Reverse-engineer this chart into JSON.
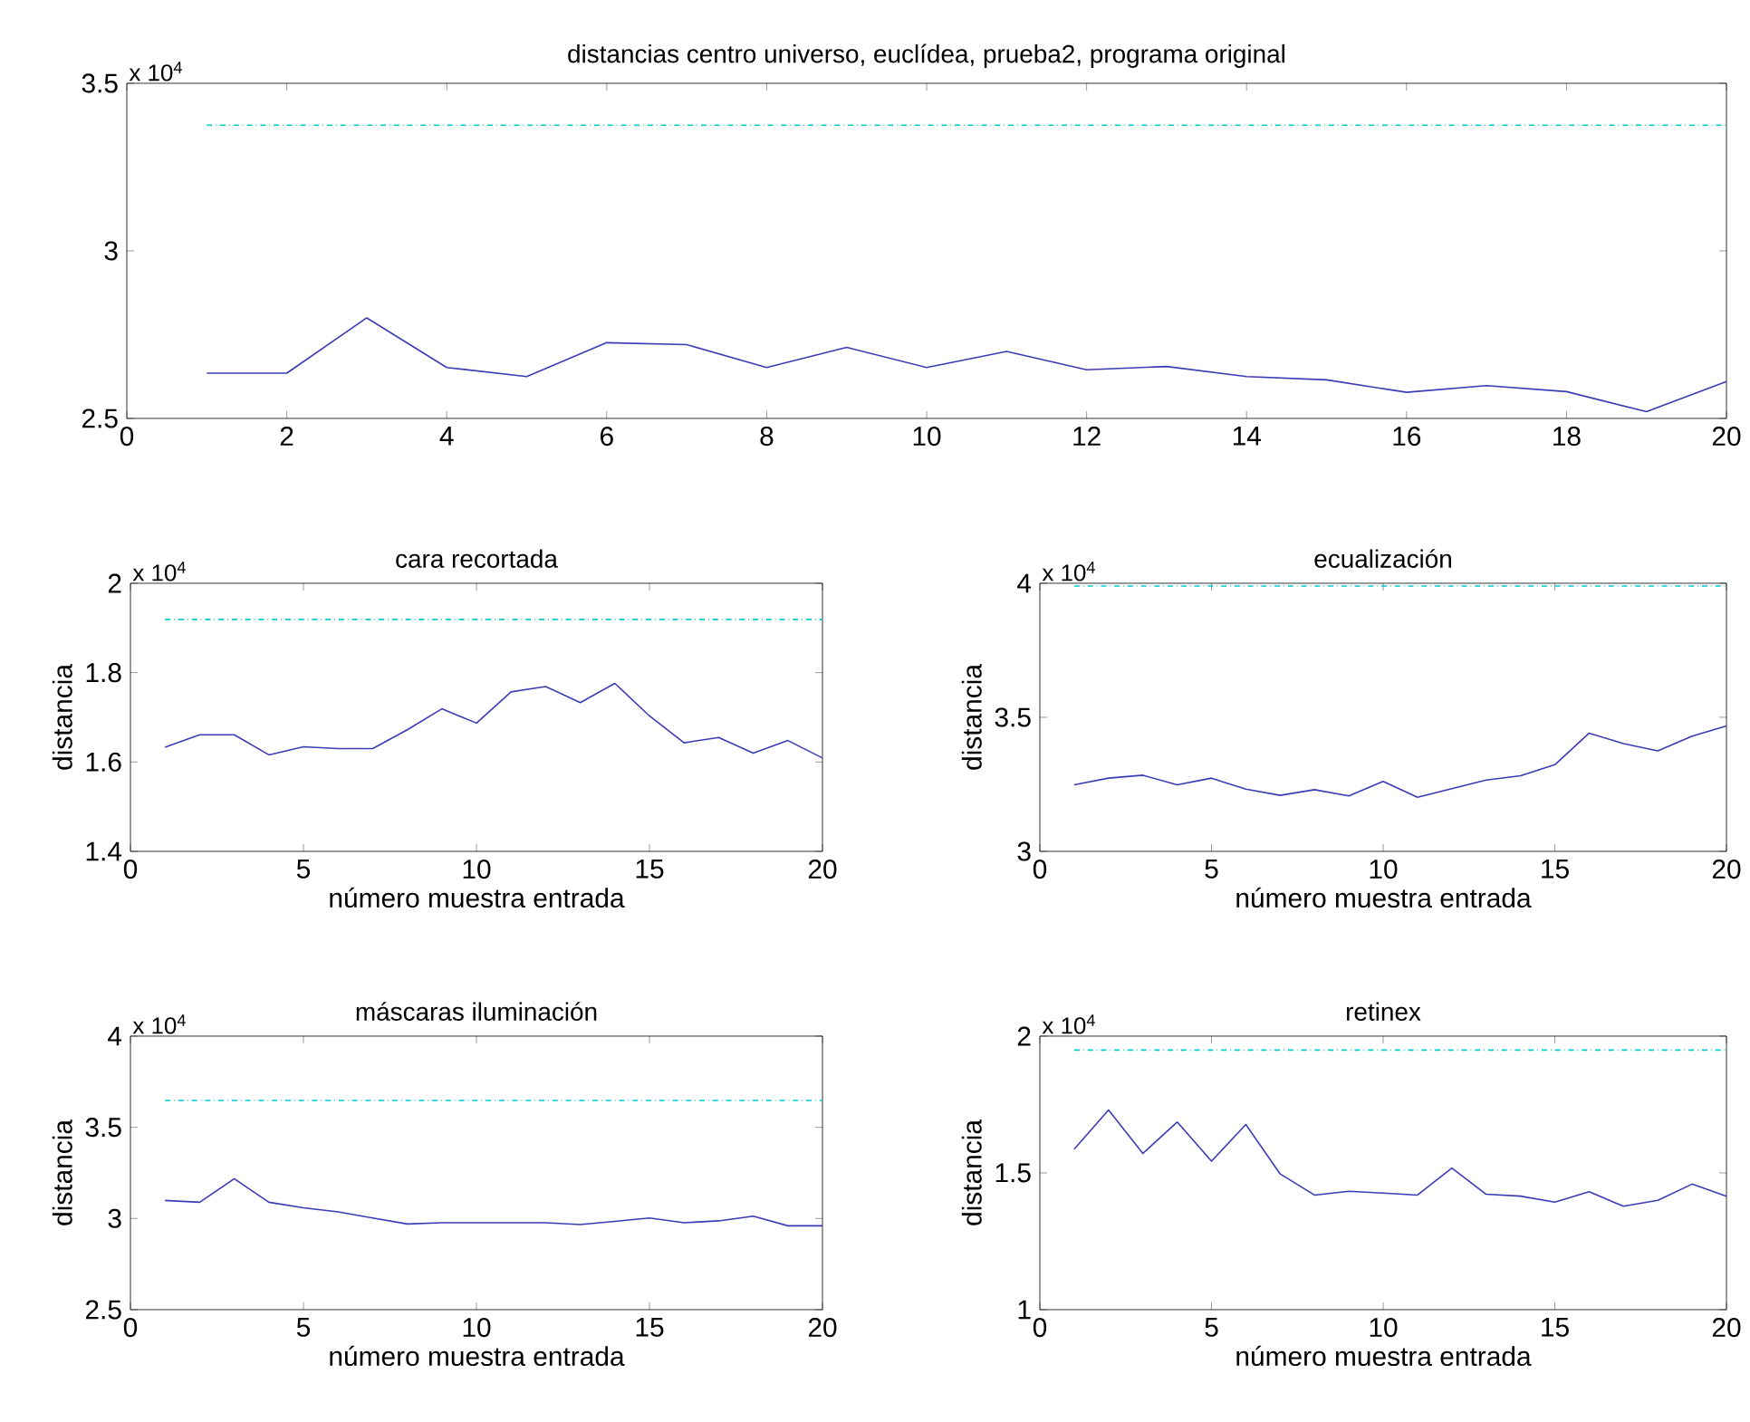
{
  "chart_data": [
    {
      "type": "line",
      "title": "distancias centro universo, euclídea, prueba2, programa original",
      "x": [
        1,
        2,
        3,
        4,
        5,
        6,
        7,
        8,
        9,
        10,
        11,
        12,
        13,
        14,
        15,
        16,
        17,
        18,
        19,
        20
      ],
      "series": [
        {
          "color": "#3b3bb5",
          "values": [
            2.635,
            2.635,
            2.8,
            2.652,
            2.625,
            2.726,
            2.72,
            2.652,
            2.712,
            2.652,
            2.7,
            2.645,
            2.655,
            2.625,
            2.615,
            2.578,
            2.598,
            2.58,
            2.52,
            2.61
          ]
        }
      ],
      "xlim": [
        0,
        20
      ],
      "ylim": [
        2.5,
        3.5
      ],
      "xticks": [
        0,
        2,
        4,
        6,
        8,
        10,
        12,
        14,
        16,
        18,
        20
      ],
      "yticks": [
        2.5,
        3,
        3.5
      ],
      "ref_lines": [
        {
          "axis": "y",
          "value": 3.375,
          "color": "#00cccc",
          "line_style": "dashdot"
        }
      ],
      "annotations": [
        "x 10$^{4}$"
      ]
    },
    {
      "type": "line",
      "title": "cara recortada",
      "ylabel": "distancia",
      "xlabel": "número muestra entrada",
      "x": [
        1,
        2,
        3,
        4,
        5,
        6,
        7,
        8,
        9,
        10,
        11,
        12,
        13,
        14,
        15,
        16,
        17,
        18,
        19,
        20
      ],
      "series": [
        {
          "color": "#3b3bb5",
          "values": [
            1.633,
            1.661,
            1.661,
            1.616,
            1.634,
            1.63,
            1.63,
            1.672,
            1.719,
            1.687,
            1.757,
            1.769,
            1.733,
            1.776,
            1.703,
            1.643,
            1.655,
            1.62,
            1.648,
            1.609
          ]
        }
      ],
      "xlim": [
        0,
        20
      ],
      "ylim": [
        1.4,
        2
      ],
      "xticks": [
        0,
        5,
        10,
        15,
        20
      ],
      "yticks": [
        1.4,
        1.6,
        1.8,
        2
      ],
      "ref_lines": [
        {
          "axis": "y",
          "value": 1.919,
          "color": "#00cccc",
          "line_style": "dashdot"
        }
      ],
      "annotations": [
        "x 10$^{4}$"
      ]
    },
    {
      "type": "line",
      "title": "ecualización",
      "ylabel": "distancia",
      "xlabel": "número muestra entrada",
      "x": [
        1,
        2,
        3,
        4,
        5,
        6,
        7,
        8,
        9,
        10,
        11,
        12,
        13,
        14,
        15,
        16,
        17,
        18,
        19,
        20
      ],
      "series": [
        {
          "color": "#3b3bb5",
          "values": [
            3.248,
            3.273,
            3.284,
            3.248,
            3.273,
            3.232,
            3.209,
            3.23,
            3.207,
            3.261,
            3.202,
            3.234,
            3.266,
            3.282,
            3.323,
            3.441,
            3.402,
            3.375,
            3.43,
            3.468
          ]
        }
      ],
      "xlim": [
        0,
        20
      ],
      "ylim": [
        3,
        4
      ],
      "xticks": [
        0,
        5,
        10,
        15,
        20
      ],
      "yticks": [
        3,
        3.5,
        4
      ],
      "ref_lines": [
        {
          "axis": "y",
          "value": 3.99,
          "color": "#00cccc",
          "line_style": "dashdot"
        }
      ],
      "annotations": [
        "x 10$^{4}$"
      ]
    },
    {
      "type": "line",
      "title": "máscaras iluminación",
      "ylabel": "distancia",
      "xlabel": "número muestra entrada",
      "x": [
        1,
        2,
        3,
        4,
        5,
        6,
        7,
        8,
        9,
        10,
        11,
        12,
        13,
        14,
        15,
        16,
        17,
        18,
        19,
        20
      ],
      "series": [
        {
          "color": "#3b3bb5",
          "values": [
            3.099,
            3.089,
            3.218,
            3.089,
            3.059,
            3.036,
            3.003,
            2.97,
            2.977,
            2.977,
            2.977,
            2.977,
            2.967,
            2.984,
            3.003,
            2.977,
            2.987,
            3.013,
            2.96,
            2.96
          ]
        }
      ],
      "xlim": [
        0,
        20
      ],
      "ylim": [
        2.5,
        4
      ],
      "xticks": [
        0,
        5,
        10,
        15,
        20
      ],
      "yticks": [
        2.5,
        3,
        3.5,
        4
      ],
      "ref_lines": [
        {
          "axis": "y",
          "value": 3.647,
          "color": "#00cccc",
          "line_style": "dashdot"
        }
      ],
      "annotations": [
        "x 10$^{4}$"
      ]
    },
    {
      "type": "line",
      "title": "retinex",
      "ylabel": "distancia",
      "xlabel": "número muestra entrada",
      "x": [
        1,
        2,
        3,
        4,
        5,
        6,
        7,
        8,
        9,
        10,
        11,
        12,
        13,
        14,
        15,
        16,
        17,
        18,
        19,
        20
      ],
      "series": [
        {
          "color": "#3b3bb5",
          "values": [
            1.587,
            1.73,
            1.571,
            1.686,
            1.543,
            1.677,
            1.496,
            1.419,
            1.433,
            1.426,
            1.419,
            1.518,
            1.422,
            1.415,
            1.393,
            1.431,
            1.378,
            1.4,
            1.459,
            1.415
          ]
        }
      ],
      "xlim": [
        0,
        20
      ],
      "ylim": [
        1,
        2
      ],
      "xticks": [
        0,
        5,
        10,
        15,
        20
      ],
      "yticks": [
        1,
        1.5,
        2
      ],
      "ref_lines": [
        {
          "axis": "y",
          "value": 1.949,
          "color": "#00cccc",
          "line_style": "dashdot"
        }
      ],
      "annotations": [
        "x 10$^{4}$"
      ]
    }
  ]
}
